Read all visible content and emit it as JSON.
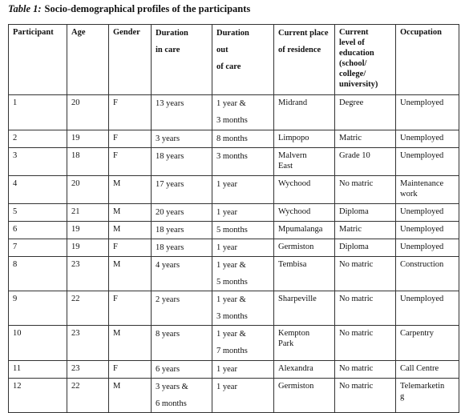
{
  "caption": {
    "label": "Table 1:",
    "title": "Socio-demographical profiles of the participants"
  },
  "table": {
    "header": [
      "Participant",
      "Age",
      "Gender",
      "Duration\nin care",
      "Duration\nout\nof care",
      "Current place\nof residence",
      "Current\nlevel of\neducation\n(school/\ncollege/\nuniversity)",
      "Occupation"
    ],
    "rows": [
      [
        "1",
        "20",
        "F",
        "13 years",
        "1 year &\n3 months",
        "Midrand",
        "Degree",
        "Unemployed"
      ],
      [
        "2",
        "19",
        "F",
        "3 years",
        "8 months",
        "Limpopo",
        "Matric",
        "Unemployed"
      ],
      [
        "3",
        "18",
        "F",
        "18 years",
        "3 months",
        "Malvern\nEast",
        "Grade 10",
        "Unemployed"
      ],
      [
        "4",
        "20",
        "M",
        "17 years",
        "1 year",
        "Wychood",
        "No matric",
        "Maintenance\nwork"
      ],
      [
        "5",
        "21",
        "M",
        "20 years",
        "1 year",
        "Wychood",
        "Diploma",
        "Unemployed"
      ],
      [
        "6",
        "19",
        "M",
        "18 years",
        "5 months",
        "Mpumalanga",
        "Matric",
        "Unemployed"
      ],
      [
        "7",
        "19",
        "F",
        "18 years",
        "1 year",
        "Germiston",
        "Diploma",
        "Unemployed"
      ],
      [
        "8",
        "23",
        "M",
        "4 years",
        "1 year &\n5 months",
        "Tembisa",
        "No matric",
        "Construction"
      ],
      [
        "9",
        "22",
        "F",
        "2 years",
        "1 year &\n3 months",
        "Sharpeville",
        "No matric",
        "Unemployed"
      ],
      [
        "10",
        "23",
        "M",
        "8 years",
        "1 year &\n7 months",
        "Kempton\nPark",
        "No matric",
        "Carpentry"
      ],
      [
        "11",
        "23",
        "F",
        "6 years",
        "1 year",
        "Alexandra",
        "No matric",
        "Call Centre"
      ],
      [
        "12",
        "22",
        "M",
        "3 years &\n6 months",
        "1 year",
        "Germiston",
        "No matric",
        "Telemarketin\ng"
      ]
    ]
  }
}
